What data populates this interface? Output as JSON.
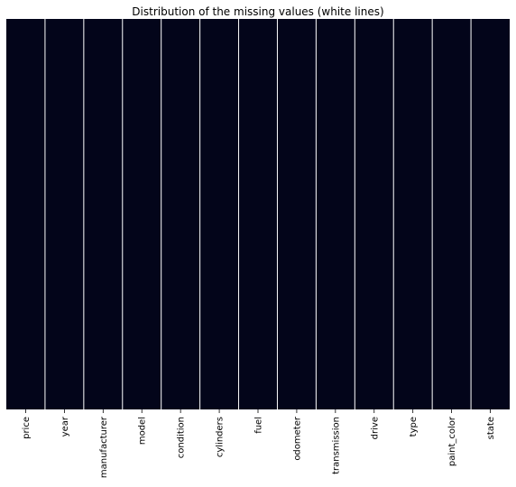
{
  "chart_data": {
    "type": "heatmap",
    "title": "Distribution of the missing values (white lines)",
    "xlabel": "",
    "ylabel": "",
    "columns": [
      "price",
      "year",
      "manufacturer",
      "model",
      "condition",
      "cylinders",
      "fuel",
      "odometer",
      "transmission",
      "drive",
      "type",
      "paint_color",
      "state"
    ],
    "missing_rows_visible": [],
    "colorbar": false,
    "y_tick_labels": false
  },
  "colors": {
    "present": "#03051a",
    "missing": "#faebdd",
    "column_separator": "#ffffff",
    "background": "#ffffff",
    "text": "#000000"
  }
}
